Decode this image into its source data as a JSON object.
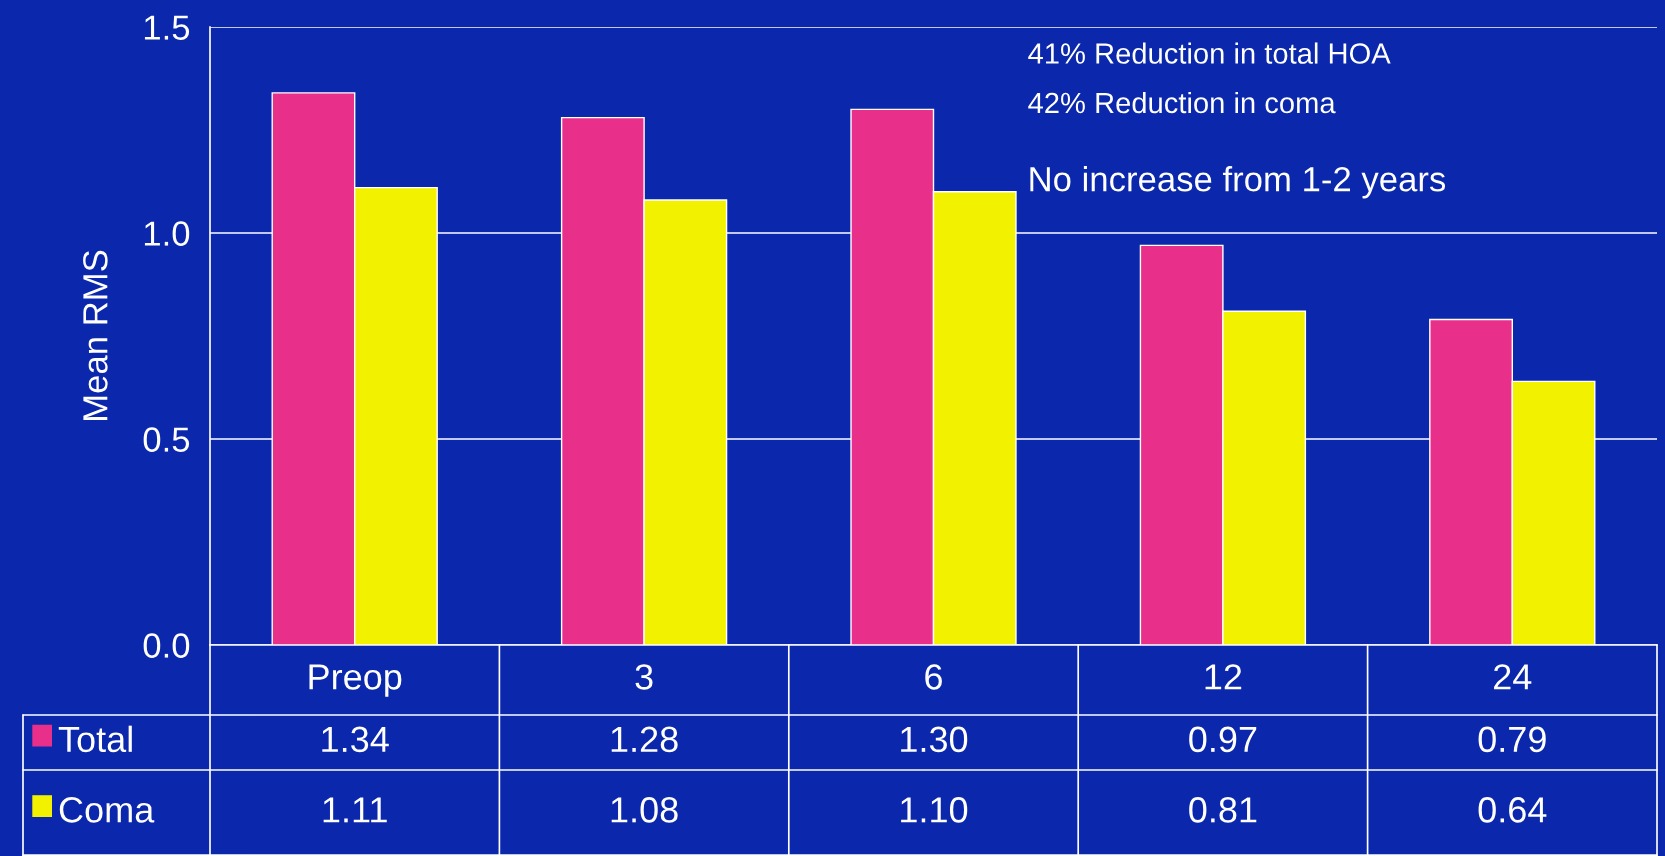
{
  "chart_data": {
    "type": "bar",
    "ylabel": "Mean RMS",
    "categories": [
      "Preop",
      "3",
      "6",
      "12",
      "24"
    ],
    "series": [
      {
        "name": "Total",
        "color": "#e8308a",
        "values": [
          1.34,
          1.28,
          1.3,
          0.97,
          0.79
        ],
        "value_labels": [
          "1.34",
          "1.28",
          "1.30",
          "0.97",
          "0.79"
        ]
      },
      {
        "name": "Coma",
        "color": "#f2f200",
        "values": [
          1.11,
          1.08,
          1.1,
          0.81,
          0.64
        ],
        "value_labels": [
          "1.11",
          "1.08",
          "1.10",
          "0.81",
          "0.64"
        ]
      }
    ],
    "ylim": [
      0,
      1.5
    ],
    "yticks": [
      {
        "value": 0,
        "label": "0.0"
      },
      {
        "value": 0.5,
        "label": "0.5"
      },
      {
        "value": 1.0,
        "label": "1.0"
      },
      {
        "value": 1.5,
        "label": "1.5"
      }
    ],
    "grid": "y",
    "legend": "bottom",
    "annotations": [
      "41% Reduction in total HOA",
      "42% Reduction in coma",
      "No increase from 1-2 years"
    ]
  }
}
